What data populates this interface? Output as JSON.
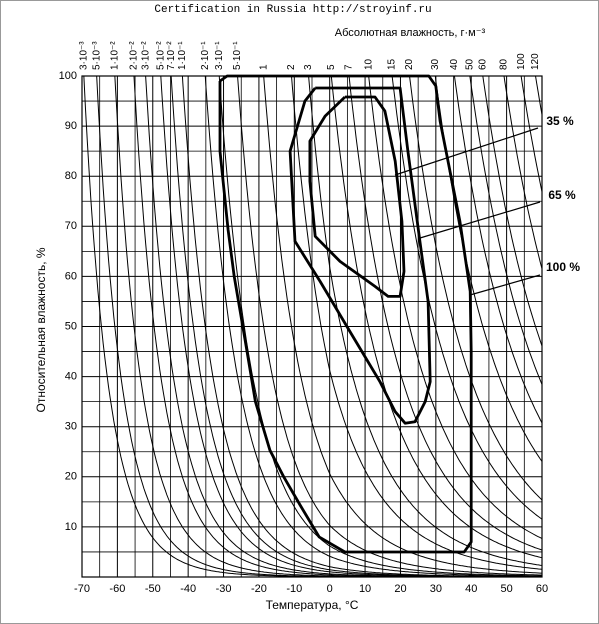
{
  "header": "Certification in Russia http://stroyinf.ru",
  "chart_data": {
    "type": "contour",
    "top_axis_title": "Абсолютная влажность, г·м⁻³",
    "xlabel": "Температура, °С",
    "ylabel": "Относительная влажность, %",
    "xlim": [
      -70,
      60
    ],
    "xticks": [
      -70,
      -60,
      -50,
      -40,
      -30,
      -20,
      -10,
      0,
      10,
      20,
      30,
      40,
      50,
      60
    ],
    "ylim": [
      0,
      100
    ],
    "yticks": [
      10,
      20,
      30,
      40,
      50,
      60,
      70,
      80,
      90,
      100
    ],
    "grid": true,
    "abs_humidity_ticks": [
      {
        "value": 0.003,
        "label": "3·10⁻³"
      },
      {
        "value": 0.005,
        "label": "5·10⁻³"
      },
      {
        "value": 0.01,
        "label": "1·10⁻²"
      },
      {
        "value": 0.02,
        "label": "2·10⁻²"
      },
      {
        "value": 0.03,
        "label": "3·10⁻²"
      },
      {
        "value": 0.05,
        "label": "5·10⁻²"
      },
      {
        "value": 0.07,
        "label": "7·10⁻²"
      },
      {
        "value": 0.1,
        "label": "1·10⁻¹"
      },
      {
        "value": 0.2,
        "label": "2·10⁻¹"
      },
      {
        "value": 0.3,
        "label": "3·10⁻¹"
      },
      {
        "value": 0.5,
        "label": "5·10⁻¹"
      },
      1,
      2,
      3,
      5,
      7,
      10,
      15,
      20,
      30,
      40,
      50,
      60,
      80,
      100,
      120
    ],
    "series": [
      {
        "name": "35 %",
        "color": "#000000",
        "x": [
          4.3,
          12.8,
          15.6,
          18.5,
          20.4,
          21,
          19.9,
          16.5,
          12.8,
          2.9,
          -4.1,
          -5.6,
          -5.6,
          -1.3,
          4.3
        ],
        "y": [
          95.8,
          95.8,
          93,
          83,
          71,
          61,
          56,
          56,
          58,
          63,
          68,
          79,
          87,
          92,
          95.8
        ]
      },
      {
        "name": "65 %",
        "color": "#000000",
        "x": [
          -4.1,
          19.9,
          22.1,
          25.5,
          27.8,
          28.4,
          27,
          24.1,
          21.3,
          18.5,
          14.2,
          5.7,
          -2.7,
          -9.8,
          -11.2,
          -7,
          -4.1
        ],
        "y": [
          97.6,
          97.6,
          85,
          67,
          55,
          39,
          35,
          31,
          30.7,
          33,
          39,
          49,
          59,
          67,
          85,
          95,
          97.6
        ]
      },
      {
        "name": "100 %",
        "color": "#000000",
        "x": [
          -31,
          -29,
          28,
          30,
          31.2,
          36.8,
          39.7,
          40,
          40,
          38,
          4.3,
          -3,
          -8.4,
          -13,
          -16.9,
          -21,
          -23.9,
          -27,
          -28.7,
          -31,
          -31
        ],
        "y": [
          99,
          100,
          100,
          98,
          91,
          71,
          57,
          45,
          7,
          5,
          5,
          8,
          14.4,
          20,
          25.3,
          35,
          47.3,
          60,
          69.3,
          85,
          99
        ]
      }
    ]
  }
}
